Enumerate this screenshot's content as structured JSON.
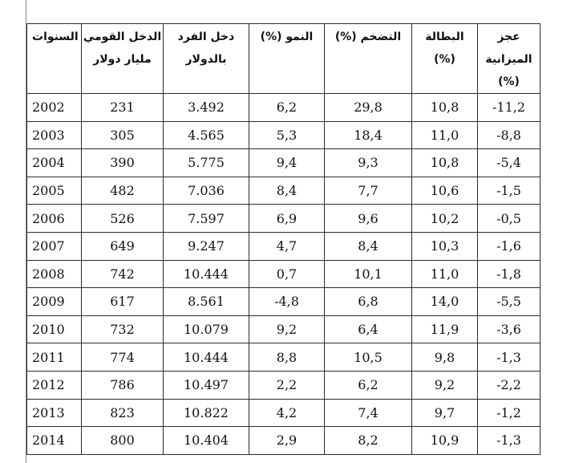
{
  "table": {
    "headers": {
      "year": "السنوات",
      "gdp_line1": "الدخل القومي",
      "gdp_line2": "مليار دولار",
      "per_capita_line1": "دخل الفرد",
      "per_capita_line2": "بالدولار",
      "growth": "(%) النمو",
      "inflation": "(%) التضخم",
      "unemployment_line1": "البطالة",
      "unemployment_line2": "(%)",
      "deficit_line1": "عجز",
      "deficit_line2": "الميزانية",
      "deficit_line3": "(%)"
    },
    "rows": [
      {
        "year": "2002",
        "gdp": "231",
        "per_capita": "3.492",
        "growth": "6,2",
        "inflation": "29,8",
        "unemployment": "10,8",
        "deficit": "-11,2"
      },
      {
        "year": "2003",
        "gdp": "305",
        "per_capita": "4.565",
        "growth": "5,3",
        "inflation": "18,4",
        "unemployment": "11,0",
        "deficit": "-8,8"
      },
      {
        "year": "2004",
        "gdp": "390",
        "per_capita": "5.775",
        "growth": "9,4",
        "inflation": "9,3",
        "unemployment": "10,8",
        "deficit": "-5,4"
      },
      {
        "year": "2005",
        "gdp": "482",
        "per_capita": "7.036",
        "growth": "8,4",
        "inflation": "7,7",
        "unemployment": "10,6",
        "deficit": "-1,5"
      },
      {
        "year": "2006",
        "gdp": "526",
        "per_capita": "7.597",
        "growth": "6,9",
        "inflation": "9,6",
        "unemployment": "10,2",
        "deficit": "-0,5"
      },
      {
        "year": "2007",
        "gdp": "649",
        "per_capita": "9.247",
        "growth": "4,7",
        "inflation": "8,4",
        "unemployment": "10,3",
        "deficit": "-1,6"
      },
      {
        "year": "2008",
        "gdp": "742",
        "per_capita": "10.444",
        "growth": "0,7",
        "inflation": "10,1",
        "unemployment": "11,0",
        "deficit": "-1,8"
      },
      {
        "year": "2009",
        "gdp": "617",
        "per_capita": "8.561",
        "growth": "-4,8",
        "inflation": "6,8",
        "unemployment": "14,0",
        "deficit": "-5,5"
      },
      {
        "year": "2010",
        "gdp": "732",
        "per_capita": "10.079",
        "growth": "9,2",
        "inflation": "6,4",
        "unemployment": "11,9",
        "deficit": "-3,6"
      },
      {
        "year": "2011",
        "gdp": "774",
        "per_capita": "10.444",
        "growth": "8,8",
        "inflation": "10,5",
        "unemployment": "9,8",
        "deficit": "-1,3"
      },
      {
        "year": "2012",
        "gdp": "786",
        "per_capita": "10.497",
        "growth": "2,2",
        "inflation": "6,2",
        "unemployment": "9,2",
        "deficit": "-2,2"
      },
      {
        "year": "2013",
        "gdp": "823",
        "per_capita": "10.822",
        "growth": "4,2",
        "inflation": "7,4",
        "unemployment": "9,7",
        "deficit": "-1,2"
      },
      {
        "year": "2014",
        "gdp": "800",
        "per_capita": "10.404",
        "growth": "2,9",
        "inflation": "8,2",
        "unemployment": "10,9",
        "deficit": "-1,3"
      }
    ]
  }
}
